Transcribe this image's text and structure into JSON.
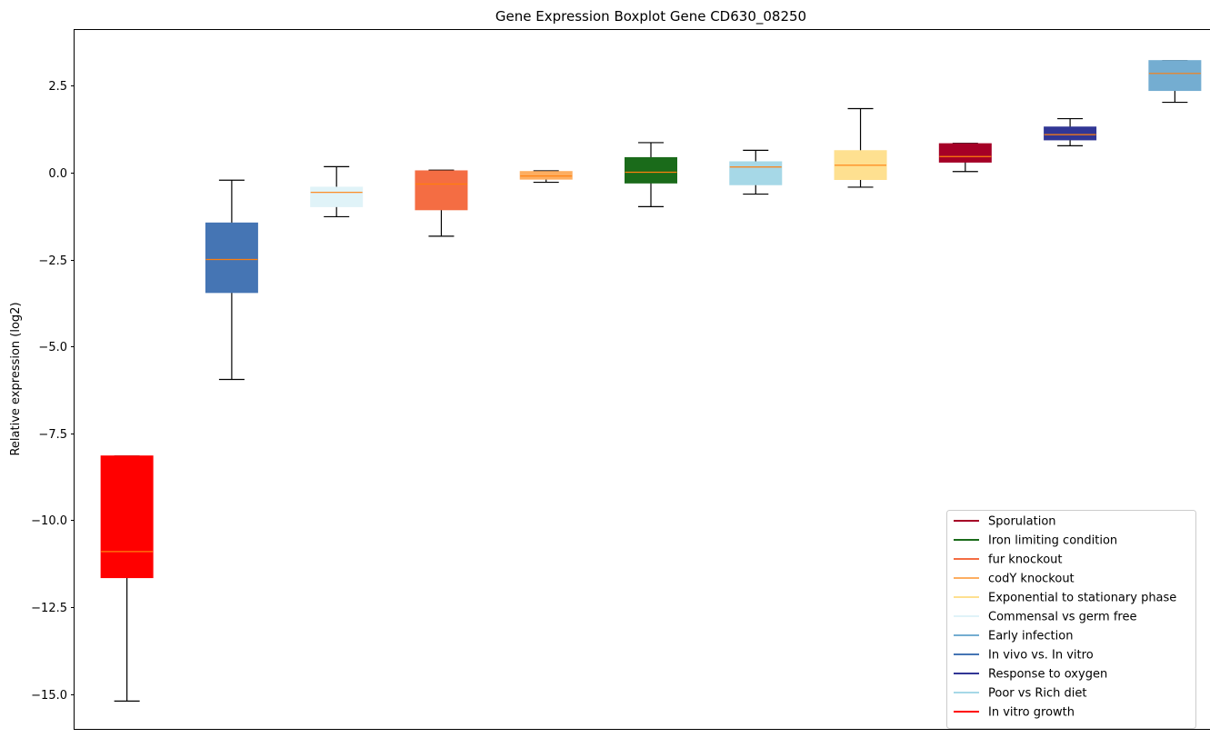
{
  "chart_data": {
    "type": "boxplot",
    "title": "Gene Expression Boxplot Gene CD630_08250",
    "xlabel": "",
    "ylabel": "Relative expression (log2)",
    "ylim": [
      -16.0,
      4.1
    ],
    "yticks": [
      2.5,
      0.0,
      -2.5,
      -5.0,
      -7.5,
      -10.0,
      -12.5,
      -15.0
    ],
    "ytick_labels": [
      "2.5",
      "0.0",
      "−2.5",
      "−5.0",
      "−7.5",
      "−10.0",
      "−12.5",
      "−15.0"
    ],
    "grid": false,
    "legend_position": "lower-right",
    "median_color": "#ff7f0e",
    "boxes": [
      {
        "name": "In vitro growth",
        "color": "#ff0000",
        "whisker_low": -15.2,
        "q1": -11.65,
        "median": -10.9,
        "q3": -8.15,
        "whisker_high": -8.15
      },
      {
        "name": "In vivo vs. In vitro",
        "color": "#4575b4",
        "whisker_low": -5.95,
        "q1": -3.45,
        "median": -2.5,
        "q3": -1.45,
        "whisker_high": -0.22
      },
      {
        "name": "Commensal vs germ free",
        "color": "#e0f3f8",
        "whisker_low": -1.27,
        "q1": -0.98,
        "median": -0.57,
        "q3": -0.42,
        "whisker_high": 0.17
      },
      {
        "name": "fur knockout",
        "color": "#f46d43",
        "whisker_low": -1.83,
        "q1": -1.07,
        "median": -0.33,
        "q3": 0.05,
        "whisker_high": 0.07
      },
      {
        "name": "codY knockout",
        "color": "#fdae61",
        "whisker_low": -0.28,
        "q1": -0.19,
        "median": -0.1,
        "q3": 0.03,
        "whisker_high": 0.05
      },
      {
        "name": "Iron limiting condition",
        "color": "#1a6b1a",
        "whisker_low": -0.98,
        "q1": -0.3,
        "median": 0.01,
        "q3": 0.43,
        "whisker_high": 0.86
      },
      {
        "name": "Poor vs Rich diet",
        "color": "#a6d8e7",
        "whisker_low": -0.62,
        "q1": -0.35,
        "median": 0.16,
        "q3": 0.31,
        "whisker_high": 0.64
      },
      {
        "name": "Exponential to stationary phase",
        "color": "#fee090",
        "whisker_low": -0.42,
        "q1": -0.2,
        "median": 0.21,
        "q3": 0.63,
        "whisker_high": 1.84
      },
      {
        "name": "Sporulation",
        "color": "#a50026",
        "whisker_low": 0.03,
        "q1": 0.3,
        "median": 0.46,
        "q3": 0.83,
        "whisker_high": 0.84
      },
      {
        "name": "Response to oxygen",
        "color": "#313695",
        "whisker_low": 0.77,
        "q1": 0.94,
        "median": 1.09,
        "q3": 1.31,
        "whisker_high": 1.55
      },
      {
        "name": "Early infection",
        "color": "#74add1",
        "whisker_low": 2.02,
        "q1": 2.36,
        "median": 2.85,
        "q3": 3.22,
        "whisker_high": 3.22
      }
    ],
    "legend": [
      {
        "label": "Sporulation",
        "color": "#a50026"
      },
      {
        "label": "Iron limiting condition",
        "color": "#1a6b1a"
      },
      {
        "label": "fur knockout",
        "color": "#f46d43"
      },
      {
        "label": "codY knockout",
        "color": "#fdae61"
      },
      {
        "label": "Exponential to stationary phase",
        "color": "#fee090"
      },
      {
        "label": "Commensal vs germ free",
        "color": "#e0f3f8"
      },
      {
        "label": "Early infection",
        "color": "#74add1"
      },
      {
        "label": "In vivo vs. In vitro",
        "color": "#4575b4"
      },
      {
        "label": "Response to oxygen",
        "color": "#313695"
      },
      {
        "label": "Poor vs Rich diet",
        "color": "#a6d8e7"
      },
      {
        "label": "In vitro growth",
        "color": "#ff0000"
      }
    ]
  }
}
